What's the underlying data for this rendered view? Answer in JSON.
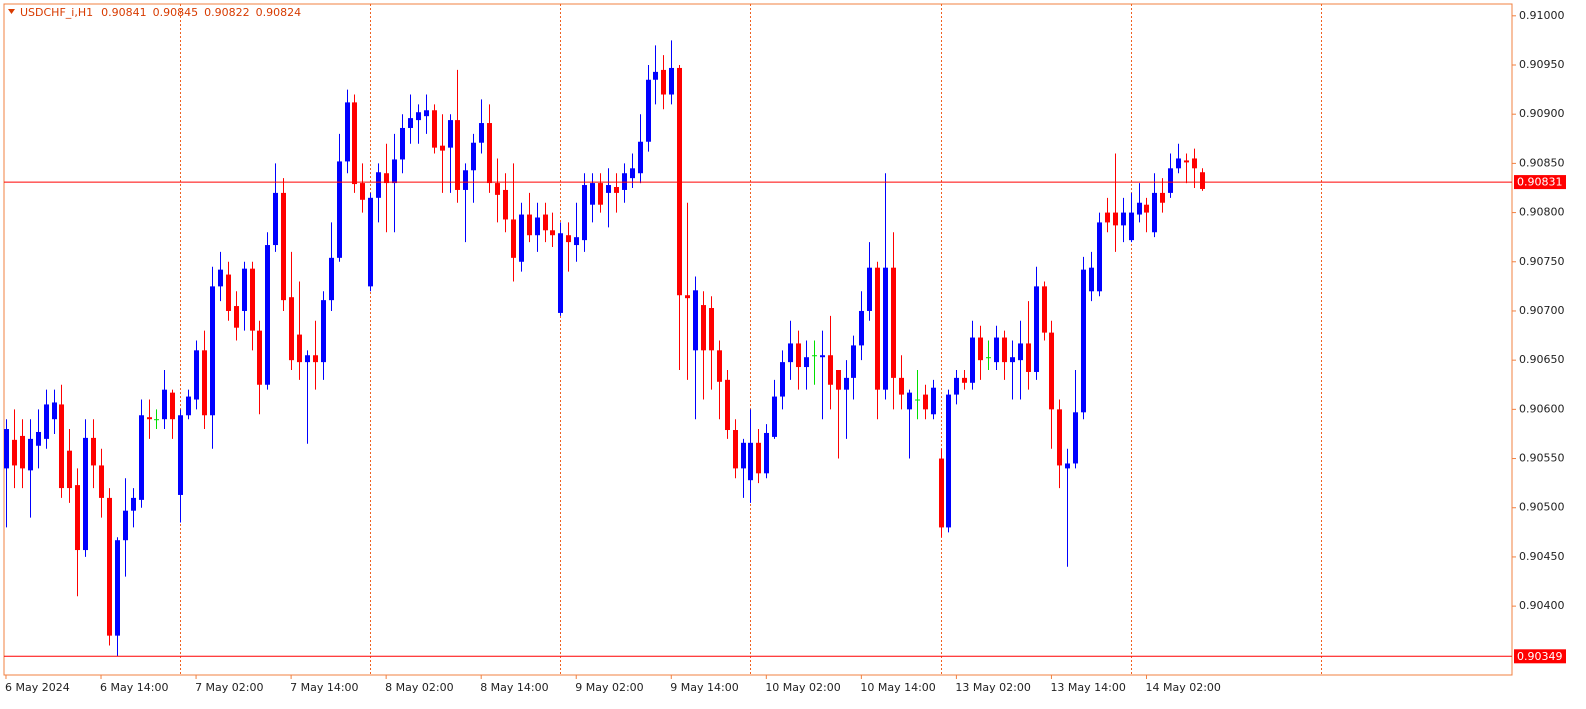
{
  "chart_data": {
    "type": "candlestick",
    "title": "USDCHF_i,H1",
    "categories": [
      "6 May 2024",
      null,
      null,
      null,
      null,
      null,
      null,
      null,
      null,
      null,
      null,
      null,
      "6 May 14:00",
      null,
      null,
      null,
      null,
      null,
      null,
      null,
      null,
      null,
      null,
      null,
      "7 May 02:00",
      null,
      null,
      null,
      null,
      null,
      null,
      null,
      null,
      null,
      null,
      null,
      "7 May 14:00",
      null,
      null,
      null,
      null,
      null,
      null,
      null,
      null,
      null,
      null,
      null,
      "8 May 02:00",
      null,
      null,
      null,
      null,
      null,
      null,
      null,
      null,
      null,
      null,
      null,
      "8 May 14:00",
      null,
      null,
      null,
      null,
      null,
      null,
      null,
      null,
      null,
      null,
      null,
      "9 May 02:00",
      null,
      null,
      null,
      null,
      null,
      null,
      null,
      null,
      null,
      null,
      null,
      "9 May 14:00",
      null,
      null,
      null,
      null,
      null,
      null,
      null,
      null,
      null,
      null,
      null,
      "10 May 02:00",
      null,
      null,
      null,
      null,
      null,
      null,
      null,
      null,
      null,
      null,
      null,
      "10 May 14:00",
      null,
      null,
      null,
      null,
      null,
      null,
      null,
      null,
      null,
      null,
      null,
      "13 May 02:00",
      null,
      null,
      null,
      null,
      null,
      null,
      null,
      null,
      null,
      null,
      null,
      "13 May 14:00",
      null,
      null,
      null,
      null,
      null,
      null,
      null,
      null,
      null,
      null,
      null,
      "14 May 02:00",
      null,
      null,
      null,
      null,
      null,
      null,
      null
    ],
    "open": [
      0.9054,
      0.90569,
      0.90573,
      0.90538,
      0.90563,
      0.9057,
      0.9059,
      0.90605,
      0.90558,
      0.90523,
      0.90457,
      0.90571,
      0.90543,
      0.9051,
      0.9037,
      0.90467,
      0.90497,
      0.90508,
      0.90592,
      0.9059,
      0.9059,
      0.90617,
      0.90513,
      0.90594,
      0.9061,
      0.9066,
      0.90594,
      0.90725,
      0.90737,
      0.90705,
      0.907,
      0.90743,
      0.9068,
      0.90625,
      0.90767,
      0.9082,
      0.90714,
      0.90676,
      0.90648,
      0.90655,
      0.90648,
      0.90711,
      0.90754,
      0.90852,
      0.90912,
      0.9083,
      0.90725,
      0.90815,
      0.9084,
      0.9083,
      0.90854,
      0.90886,
      0.90894,
      0.90898,
      0.90904,
      0.90868,
      0.90866,
      0.90894,
      0.90823,
      0.90843,
      0.90871,
      0.90891,
      0.9083,
      0.90823,
      0.90793,
      0.9075,
      0.90798,
      0.90777,
      0.90798,
      0.90782,
      0.90698,
      0.90777,
      0.90767,
      0.90772,
      0.90808,
      0.9083,
      0.9082,
      0.90826,
      0.90823,
      0.90835,
      0.9084,
      0.90872,
      0.90935,
      0.90945,
      0.9092,
      0.90947,
      0.90716,
      0.9066,
      0.90706,
      0.90703,
      0.9066,
      0.9063,
      0.90579,
      0.9054,
      0.90528,
      0.90566,
      0.90535,
      0.90572,
      0.90613,
      0.90648,
      0.90667,
      0.90643,
      0.90655,
      0.90653,
      0.90655,
      0.9064,
      0.9062,
      0.90632,
      0.90665,
      0.907,
      0.90744,
      0.9062,
      0.90744,
      0.90632,
      0.906,
      0.9061,
      0.90615,
      0.90595,
      0.9055,
      0.9048,
      0.90615,
      0.90632,
      0.90627,
      0.90673,
      0.90653,
      0.90648,
      0.90673,
      0.90648,
      0.9065,
      0.90667,
      0.90638,
      0.90725,
      0.90678,
      0.906,
      0.9054,
      0.90545,
      0.90597,
      0.9072,
      0.9072,
      0.908,
      0.908,
      0.90787,
      0.90772,
      0.90798,
      0.90808,
      0.9078,
      0.9082,
      0.9082,
      0.90845,
      0.90853,
      0.90855,
      0.90841
    ],
    "high": [
      0.9059,
      0.906,
      0.9059,
      0.9059,
      0.906,
      0.9062,
      0.9062,
      0.90625,
      0.9058,
      0.9054,
      0.9059,
      0.9059,
      0.9056,
      0.9052,
      0.9047,
      0.9053,
      0.9052,
      0.9061,
      0.9061,
      0.906,
      0.9064,
      0.9062,
      0.906,
      0.9062,
      0.9067,
      0.9068,
      0.90745,
      0.9076,
      0.9075,
      0.9072,
      0.9075,
      0.9075,
      0.9069,
      0.9078,
      0.9085,
      0.90835,
      0.9076,
      0.9073,
      0.9066,
      0.9069,
      0.9072,
      0.9079,
      0.9088,
      0.90925,
      0.9092,
      0.9085,
      0.9082,
      0.9085,
      0.9087,
      0.9088,
      0.909,
      0.9092,
      0.9091,
      0.9092,
      0.9091,
      0.909,
      0.909,
      0.90945,
      0.9085,
      0.9088,
      0.90915,
      0.9091,
      0.90855,
      0.9084,
      0.9085,
      0.9081,
      0.9082,
      0.9081,
      0.9081,
      0.908,
      0.9079,
      0.9079,
      0.9081,
      0.9084,
      0.9084,
      0.9084,
      0.90845,
      0.9084,
      0.9085,
      0.9086,
      0.909,
      0.9095,
      0.9097,
      0.9096,
      0.90975,
      0.9095,
      0.9081,
      0.90735,
      0.9072,
      0.90715,
      0.9067,
      0.9064,
      0.9059,
      0.9057,
      0.906,
      0.9058,
      0.90585,
      0.9063,
      0.9066,
      0.9069,
      0.9068,
      0.9067,
      0.9067,
      0.9068,
      0.90695,
      0.9064,
      0.9065,
      0.90675,
      0.9072,
      0.9077,
      0.9075,
      0.9084,
      0.9078,
      0.90655,
      0.9062,
      0.9064,
      0.90625,
      0.9063,
      0.9056,
      0.9062,
      0.9064,
      0.9064,
      0.9069,
      0.90685,
      0.9067,
      0.90685,
      0.9068,
      0.9067,
      0.9069,
      0.9071,
      0.90745,
      0.9073,
      0.9069,
      0.9061,
      0.9056,
      0.9064,
      0.90755,
      0.9076,
      0.908,
      0.90815,
      0.9086,
      0.90815,
      0.9082,
      0.9083,
      0.90815,
      0.9084,
      0.90835,
      0.9086,
      0.9087,
      0.9086,
      0.90865,
      0.90845
    ],
    "low": [
      0.9048,
      0.9052,
      0.9052,
      0.9049,
      0.9054,
      0.9056,
      0.90575,
      0.9051,
      0.90505,
      0.9041,
      0.9045,
      0.9052,
      0.9049,
      0.9036,
      0.90349,
      0.9043,
      0.9048,
      0.905,
      0.9057,
      0.9058,
      0.9058,
      0.9057,
      0.90485,
      0.9059,
      0.906,
      0.9058,
      0.9056,
      0.9071,
      0.9069,
      0.9067,
      0.9068,
      0.9066,
      0.90595,
      0.9062,
      0.9076,
      0.907,
      0.9064,
      0.9063,
      0.90565,
      0.9062,
      0.9063,
      0.907,
      0.9075,
      0.9084,
      0.9082,
      0.908,
      0.9072,
      0.9079,
      0.9078,
      0.9078,
      0.9084,
      0.9087,
      0.9087,
      0.9088,
      0.9086,
      0.9082,
      0.9082,
      0.9081,
      0.9077,
      0.9081,
      0.9086,
      0.9082,
      0.9079,
      0.9078,
      0.9073,
      0.9074,
      0.9077,
      0.9076,
      0.9077,
      0.90765,
      0.90695,
      0.9074,
      0.9075,
      0.9076,
      0.9079,
      0.908,
      0.90785,
      0.908,
      0.9081,
      0.90825,
      0.9083,
      0.90862,
      0.9091,
      0.90905,
      0.9091,
      0.9064,
      0.9063,
      0.9059,
      0.9061,
      0.9062,
      0.9059,
      0.9057,
      0.9053,
      0.9051,
      0.90505,
      0.90525,
      0.9053,
      0.9057,
      0.906,
      0.9063,
      0.9062,
      0.9062,
      0.90625,
      0.9059,
      0.906,
      0.9055,
      0.9057,
      0.9061,
      0.9065,
      0.9069,
      0.9059,
      0.9061,
      0.906,
      0.906,
      0.9055,
      0.9059,
      0.9059,
      0.9059,
      0.9047,
      0.90475,
      0.90605,
      0.9062,
      0.9062,
      0.9063,
      0.9064,
      0.9064,
      0.9063,
      0.9061,
      0.9061,
      0.9062,
      0.9063,
      0.9067,
      0.9056,
      0.9052,
      0.9044,
      0.9054,
      0.9059,
      0.9071,
      0.90715,
      0.9078,
      0.9076,
      0.9077,
      0.9077,
      0.9079,
      0.9078,
      0.90775,
      0.908,
      0.90815,
      0.9084,
      0.9083,
      0.90825,
      0.90822
    ],
    "close": [
      0.9058,
      0.90543,
      0.9054,
      0.9057,
      0.90577,
      0.90605,
      0.90607,
      0.9052,
      0.9052,
      0.90457,
      0.90571,
      0.90543,
      0.9051,
      0.9037,
      0.90467,
      0.90497,
      0.9051,
      0.90594,
      0.9059,
      0.9059,
      0.9062,
      0.9059,
      0.90594,
      0.90613,
      0.9066,
      0.90594,
      0.90725,
      0.90742,
      0.907,
      0.90683,
      0.90743,
      0.9068,
      0.90625,
      0.90767,
      0.9082,
      0.90711,
      0.9065,
      0.90648,
      0.90655,
      0.90648,
      0.90711,
      0.90754,
      0.90852,
      0.90912,
      0.90829,
      0.90813,
      0.90815,
      0.90841,
      0.9083,
      0.90854,
      0.90886,
      0.90896,
      0.90902,
      0.90904,
      0.90866,
      0.90863,
      0.90894,
      0.90823,
      0.90843,
      0.90871,
      0.90891,
      0.9083,
      0.90818,
      0.90793,
      0.90754,
      0.90798,
      0.90777,
      0.90795,
      0.90782,
      0.90777,
      0.90779,
      0.9077,
      0.90775,
      0.90828,
      0.9083,
      0.90808,
      0.90828,
      0.9082,
      0.9084,
      0.90845,
      0.90872,
      0.90935,
      0.90943,
      0.9092,
      0.90947,
      0.90716,
      0.90713,
      0.90721,
      0.9066,
      0.9066,
      0.90628,
      0.90579,
      0.9054,
      0.90566,
      0.90566,
      0.90535,
      0.90576,
      0.90613,
      0.90648,
      0.90667,
      0.90643,
      0.90653,
      0.90655,
      0.90655,
      0.90625,
      0.9062,
      0.90632,
      0.90665,
      0.907,
      0.90744,
      0.9062,
      0.90744,
      0.90632,
      0.90615,
      0.90617,
      0.9061,
      0.906,
      0.90622,
      0.9048,
      0.90615,
      0.90632,
      0.90627,
      0.90673,
      0.9065,
      0.90653,
      0.90673,
      0.90648,
      0.90653,
      0.90667,
      0.90638,
      0.90725,
      0.90678,
      0.906,
      0.90543,
      0.90545,
      0.90597,
      0.90742,
      0.90744,
      0.9079,
      0.9079,
      0.90787,
      0.908,
      0.908,
      0.9081,
      0.908,
      0.9082,
      0.9081,
      0.90845,
      0.90855,
      0.90851,
      0.90845,
      0.90824
    ],
    "up_color": "#0000ff",
    "down_color": "#ff0000",
    "doji_color": "#00e000",
    "xlim": [
      -0.25,
      190.15
    ],
    "ylim": [
      0.9033,
      0.91012
    ],
    "yticks": [
      {
        "value": 0.904,
        "label": "0.90400"
      },
      {
        "value": 0.9045,
        "label": "0.90450"
      },
      {
        "value": 0.905,
        "label": "0.90500"
      },
      {
        "value": 0.9055,
        "label": "0.90550"
      },
      {
        "value": 0.906,
        "label": "0.90600"
      },
      {
        "value": 0.9065,
        "label": "0.90650"
      },
      {
        "value": 0.907,
        "label": "0.90700"
      },
      {
        "value": 0.9075,
        "label": "0.90750"
      },
      {
        "value": 0.908,
        "label": "0.90800"
      },
      {
        "value": 0.9085,
        "label": "0.90850"
      },
      {
        "value": 0.909,
        "label": "0.90900"
      },
      {
        "value": 0.9095,
        "label": "0.90950"
      },
      {
        "value": 0.91,
        "label": "0.91000"
      }
    ],
    "period_separators": [
      22,
      46,
      70,
      94,
      118,
      142,
      166
    ],
    "hlines": [
      0.90831,
      0.90349
    ],
    "grid": false
  }
}
